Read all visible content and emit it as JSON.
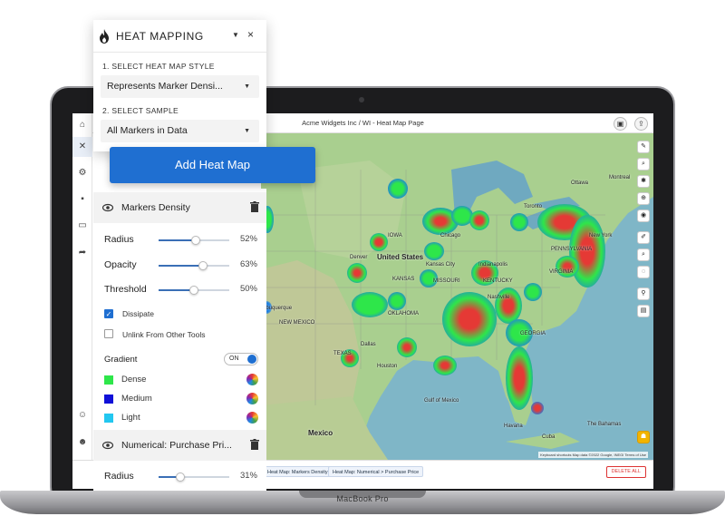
{
  "laptop": {
    "label": "MacBook Pro"
  },
  "app": {
    "title": "Acme Widgets Inc / WI - Heat Map Page",
    "footer_chips": [
      "Heat Map: Markers Density",
      "Heat Map: Numerical > Purchase Price"
    ],
    "delete_all": "DELETE ALL",
    "attribution": "Keyboard shortcuts  Map data ©2022 Google, INEGI  Terms of Use"
  },
  "map": {
    "labels": {
      "united_states": "United States",
      "mexico": "Mexico",
      "montreal": "Montreal",
      "ottawa": "Ottawa",
      "toronto": "Toronto",
      "new_york": "New York",
      "chicago": "Chicago",
      "denver": "Denver",
      "kansas": "Kansas City",
      "nashville": "Nashville",
      "missouri": "MISSOURI",
      "kentucky": "KENTUCKY",
      "iowa": "IOWA",
      "kansas_state": "KANSAS",
      "texas": "TEXAS",
      "georgia": "GEORGIA",
      "oklahoma": "OKLAHOMA",
      "pennsylvania": "PENNSYLVANIA",
      "virginia": "VIRGINIA",
      "indianapolis": "Indianapolis",
      "albuquerque": "Albuquerque",
      "new_mexico": "NEW MEXICO",
      "houston": "Houston",
      "gulf": "Gulf of Mexico",
      "dallas": "Dallas",
      "cuba": "Cuba",
      "havana": "Havana",
      "bahamas": "The Bahamas"
    }
  },
  "panel": {
    "title": "HEAT MAPPING",
    "icon": "flame-icon",
    "step1_label": "1. SELECT HEAT MAP STYLE",
    "step1_value": "Represents Marker Densi...",
    "step2_label": "2. SELECT SAMPLE",
    "step2_value": "All Markers in Data",
    "add_button": "Add Heat Map",
    "layer1": {
      "title": "Markers Density",
      "radius_label": "Radius",
      "radius_value": "52%",
      "radius_level": 52,
      "opacity_label": "Opacity",
      "opacity_value": "63%",
      "opacity_level": 63,
      "threshold_label": "Threshold",
      "threshold_value": "50%",
      "threshold_level": 50,
      "dissipate_label": "Dissipate",
      "dissipate_checked": true,
      "unlink_label": "Unlink From Other Tools",
      "unlink_checked": false,
      "gradient_label": "Gradient",
      "gradient_toggle": "ON",
      "dense_label": "Dense",
      "dense_color": "#2ee64a",
      "medium_label": "Medium",
      "medium_color": "#1010d8",
      "light_label": "Light",
      "light_color": "#22c7f0"
    },
    "layer2": {
      "title": "Numerical: Purchase Pri...",
      "radius_label": "Radius",
      "radius_value": "31%",
      "radius_level": 31
    }
  }
}
